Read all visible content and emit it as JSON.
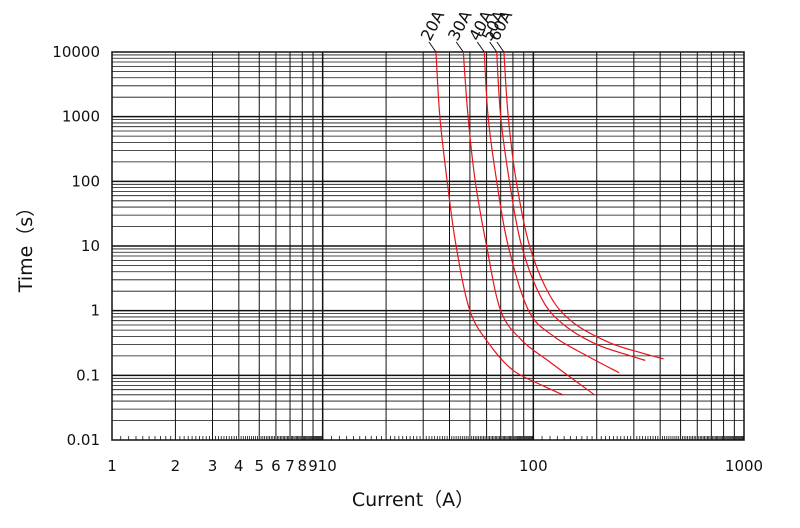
{
  "chart_data": {
    "type": "line",
    "title": "",
    "xlabel": "Current（A）",
    "ylabel": "Time（s）",
    "x_scale": "log",
    "y_scale": "log",
    "xlim": [
      1,
      1000
    ],
    "ylim": [
      0.01,
      10000
    ],
    "grid": true,
    "x_tick_labels": [
      {
        "value": 1,
        "label": "1"
      },
      {
        "value": 2,
        "label": "2"
      },
      {
        "value": 3,
        "label": "3"
      },
      {
        "value": 4,
        "label": "4"
      },
      {
        "value": 5,
        "label": "5"
      },
      {
        "value": 6,
        "label": "6"
      },
      {
        "value": 7,
        "label": "7"
      },
      {
        "value": 8,
        "label": "8"
      },
      {
        "value": 9,
        "label": "9"
      },
      {
        "value": 10,
        "label": "10"
      },
      {
        "value": 100,
        "label": "100"
      },
      {
        "value": 1000,
        "label": "1000"
      }
    ],
    "y_tick_labels": [
      {
        "value": 10000,
        "label": "10000"
      },
      {
        "value": 1000,
        "label": "1000"
      },
      {
        "value": 100,
        "label": "100"
      },
      {
        "value": 10,
        "label": "10"
      },
      {
        "value": 1,
        "label": "1"
      },
      {
        "value": 0.1,
        "label": "0.1"
      },
      {
        "value": 0.01,
        "label": "0.01"
      }
    ],
    "line_color": "#e8141c",
    "series": [
      {
        "name": "20A",
        "points": [
          [
            34.5,
            10000
          ],
          [
            36,
            1000
          ],
          [
            39,
            100
          ],
          [
            43,
            10
          ],
          [
            50,
            1
          ],
          [
            62,
            0.3
          ],
          [
            80,
            0.12
          ],
          [
            110,
            0.07
          ],
          [
            138,
            0.05
          ]
        ]
      },
      {
        "name": "30A",
        "points": [
          [
            46.5,
            10000
          ],
          [
            49,
            1000
          ],
          [
            53,
            100
          ],
          [
            60,
            10
          ],
          [
            70,
            1
          ],
          [
            88,
            0.35
          ],
          [
            120,
            0.16
          ],
          [
            160,
            0.08
          ],
          [
            195,
            0.05
          ]
        ]
      },
      {
        "name": "40A",
        "points": [
          [
            58.5,
            10000
          ],
          [
            61,
            1000
          ],
          [
            67,
            100
          ],
          [
            76,
            10
          ],
          [
            95,
            1
          ],
          [
            125,
            0.4
          ],
          [
            180,
            0.2
          ],
          [
            255,
            0.11
          ]
        ]
      },
      {
        "name": "50A",
        "points": [
          [
            67,
            10000
          ],
          [
            70,
            1000
          ],
          [
            77,
            100
          ],
          [
            88,
            10
          ],
          [
            110,
            1.5
          ],
          [
            140,
            0.6
          ],
          [
            200,
            0.3
          ],
          [
            290,
            0.2
          ],
          [
            340,
            0.17
          ]
        ]
      },
      {
        "name": "60A",
        "points": [
          [
            72.5,
            10000
          ],
          [
            76,
            1000
          ],
          [
            83,
            100
          ],
          [
            96,
            10
          ],
          [
            120,
            1.7
          ],
          [
            155,
            0.65
          ],
          [
            230,
            0.32
          ],
          [
            330,
            0.22
          ],
          [
            415,
            0.18
          ]
        ]
      }
    ]
  }
}
